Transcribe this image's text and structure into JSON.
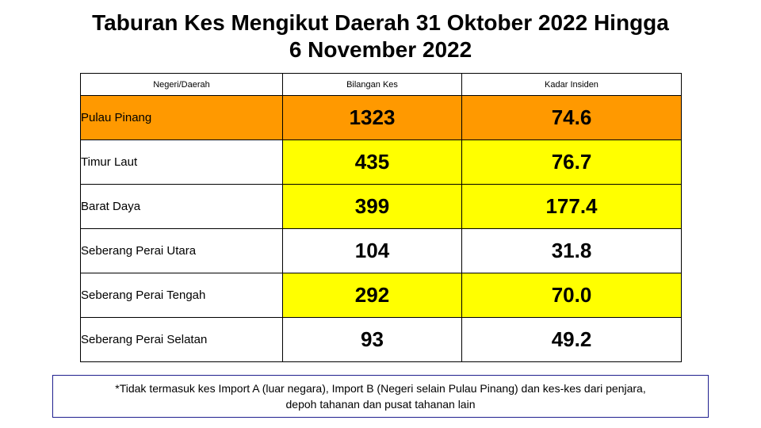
{
  "title_line1": "Taburan Kes Mengikut Daerah 31 Oktober 2022 Hingga",
  "title_line2": "6 November 2022",
  "table": {
    "headers": [
      "Negeri/Daerah",
      "Bilangan Kes",
      "Kadar Insiden"
    ],
    "rows": [
      {
        "name": "Pulau Pinang",
        "cases": "1323",
        "rate": "74.6",
        "name_bg": "#ff9900",
        "value_bg": "#ff9900"
      },
      {
        "name": "Timur Laut",
        "cases": "435",
        "rate": "76.7",
        "name_bg": "#ffffff",
        "value_bg": "#ffff00"
      },
      {
        "name": "Barat Daya",
        "cases": "399",
        "rate": "177.4",
        "name_bg": "#ffffff",
        "value_bg": "#ffff00"
      },
      {
        "name": "Seberang Perai Utara",
        "cases": "104",
        "rate": "31.8",
        "name_bg": "#ffffff",
        "value_bg": "#ffffff"
      },
      {
        "name": "Seberang Perai Tengah",
        "cases": "292",
        "rate": "70.0",
        "name_bg": "#ffffff",
        "value_bg": "#ffff00"
      },
      {
        "name": "Seberang Perai Selatan",
        "cases": "93",
        "rate": "49.2",
        "name_bg": "#ffffff",
        "value_bg": "#ffffff"
      }
    ]
  },
  "footnote_line1": "*Tidak termasuk kes Import A (luar negara), Import B (Negeri selain Pulau Pinang) dan kes-kes dari penjara,",
  "footnote_line2": "depoh tahanan dan pusat tahanan lain"
}
